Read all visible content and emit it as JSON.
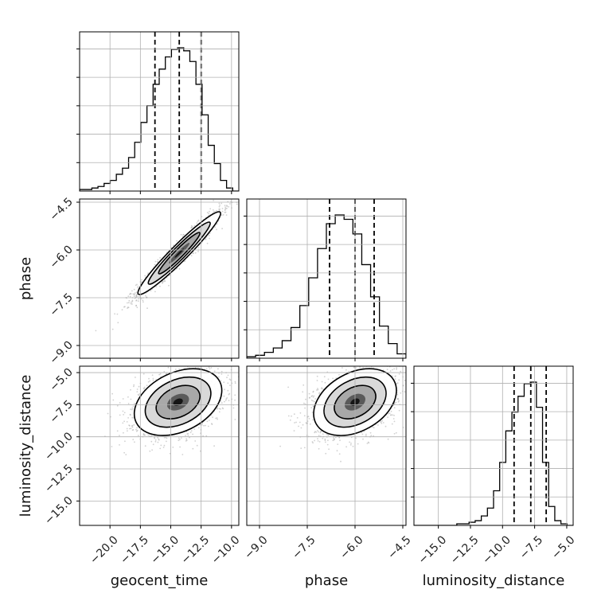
{
  "chart_data": {
    "type": "corner",
    "parameters": [
      "geocent_time",
      "phase",
      "luminosity_distance"
    ],
    "labels": [
      "geocent_time",
      "phase",
      "luminosity_distance"
    ],
    "ranges": [
      [
        -22.5,
        -9.4
      ],
      [
        -9.4,
        -4.4
      ],
      [
        -16.9,
        -4.5
      ]
    ],
    "ticks": [
      [
        -20.0,
        -17.5,
        -15.0,
        -12.5,
        -10.0
      ],
      [
        -9.0,
        -7.5,
        -6.0,
        -4.5
      ],
      [
        -15.0,
        -12.5,
        -10.0,
        -7.5,
        -5.0
      ]
    ],
    "tick_labels": [
      [
        "−20.0",
        "−17.5",
        "−15.0",
        "−12.5",
        "−10.0"
      ],
      [
        "−9.0",
        "−7.5",
        "−6.0",
        "−4.5"
      ],
      [
        "−15.0",
        "−12.5",
        "−10.0",
        "−7.5",
        "−5.0"
      ]
    ],
    "grid": true,
    "quantiles": [
      [
        -16.3,
        -14.3,
        -12.5
      ],
      [
        -6.8,
        -6.0,
        -5.4
      ],
      [
        -9.1,
        -7.8,
        -6.6
      ]
    ],
    "histograms": [
      {
        "param": "geocent_time",
        "counts": [
          1,
          1,
          2,
          3,
          5,
          7,
          11,
          15,
          22,
          32,
          45,
          56,
          70,
          80,
          88,
          93,
          94,
          92,
          85,
          70,
          50,
          30,
          18,
          7,
          2,
          0
        ]
      },
      {
        "param": "phase",
        "counts": [
          1,
          2,
          4,
          7,
          12,
          21,
          36,
          55,
          75,
          92,
          98,
          95,
          85,
          64,
          42,
          22,
          10,
          3
        ]
      },
      {
        "param": "luminosity_distance",
        "counts": [
          0,
          0,
          0,
          0,
          0,
          0,
          0,
          1,
          1,
          2,
          3,
          6,
          11,
          22,
          40,
          60,
          72,
          82,
          90,
          91,
          75,
          40,
          12,
          3,
          1,
          0
        ]
      }
    ],
    "pair_correlations": [
      {
        "x": "geocent_time",
        "y": "phase",
        "mean": [
          -14.3,
          -6.1
        ],
        "sd": [
          1.7,
          0.65
        ],
        "rho": 0.96
      },
      {
        "x": "geocent_time",
        "y": "luminosity_distance",
        "mean": [
          -14.4,
          -7.3
        ],
        "sd": [
          1.8,
          1.3
        ],
        "rho": 0.35
      },
      {
        "x": "phase",
        "y": "luminosity_distance",
        "mean": [
          -6.0,
          -7.3
        ],
        "sd": [
          0.65,
          1.3
        ],
        "rho": 0.35
      }
    ]
  }
}
